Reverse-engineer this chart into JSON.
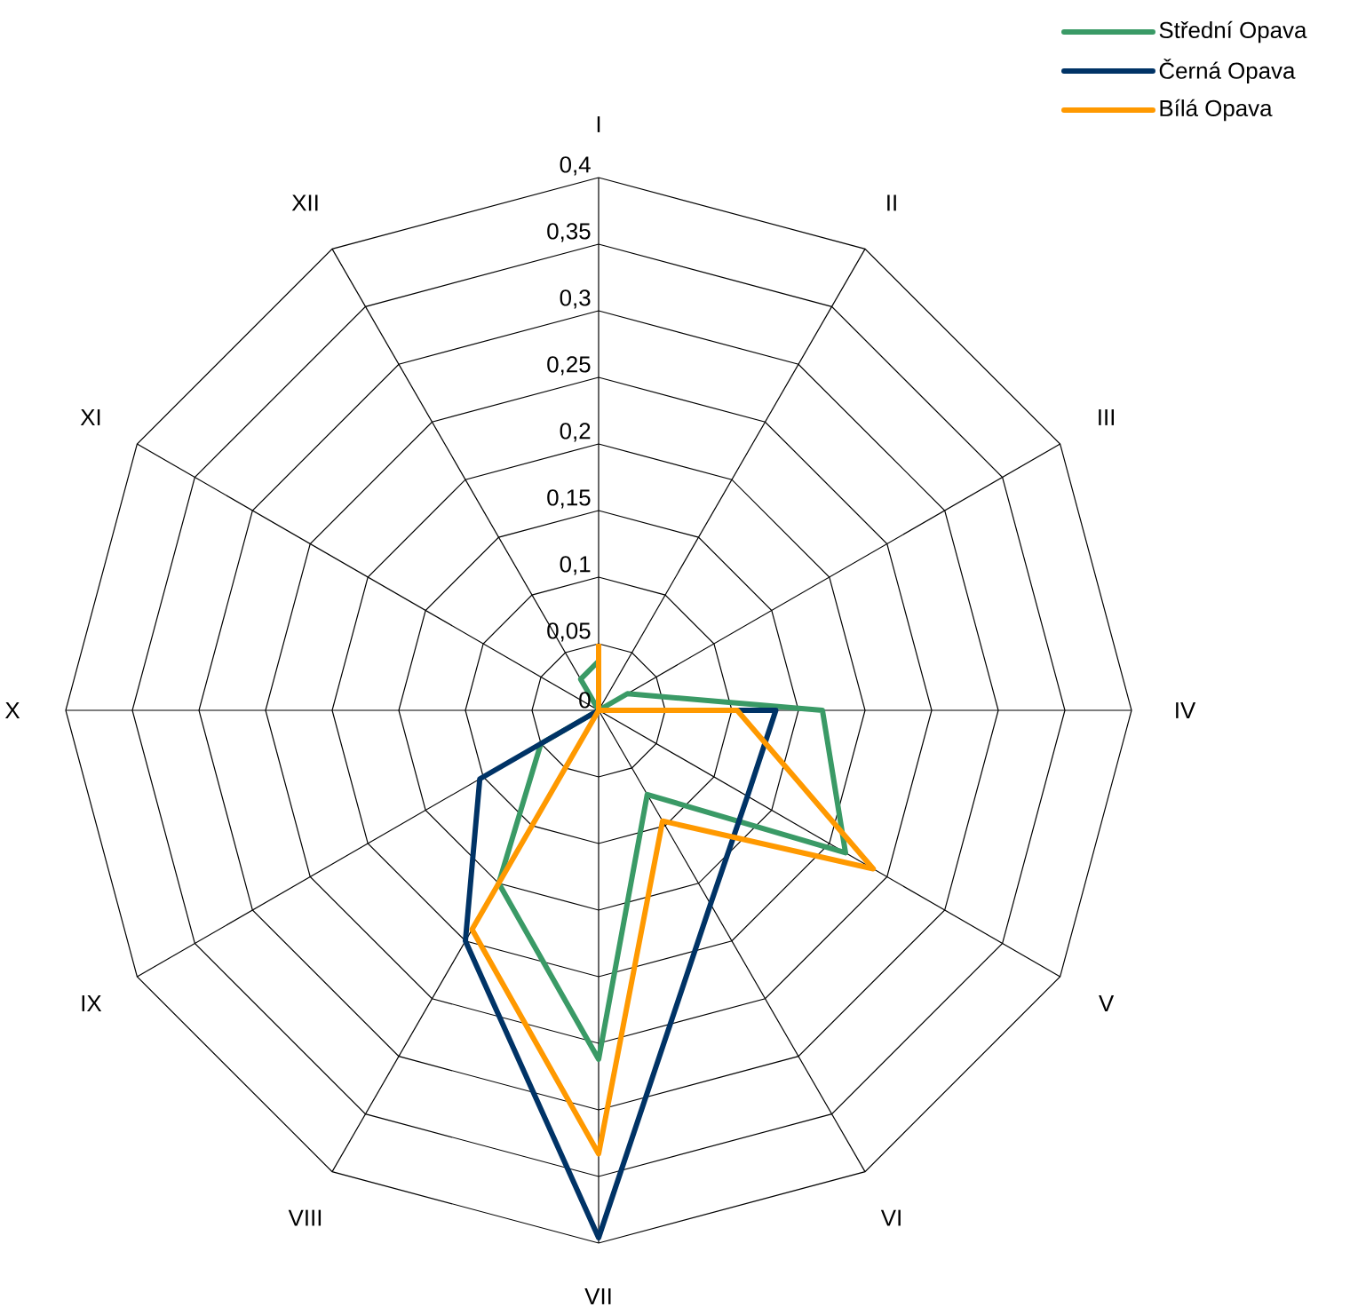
{
  "chart_data": {
    "type": "radar",
    "categories": [
      "I",
      "II",
      "III",
      "IV",
      "V",
      "VI",
      "VII",
      "VIII",
      "IX",
      "X",
      "XI",
      "XII"
    ],
    "series": [
      {
        "name": "Střední Opava",
        "color": "#3a9a66",
        "values": [
          0.037,
          0,
          0.025,
          0.168,
          0.214,
          0.073,
          0.262,
          0.15,
          0.05,
          0,
          0,
          0.027
        ]
      },
      {
        "name": "Černá Opava",
        "color": "#003366",
        "values": [
          0,
          0,
          0,
          0.133,
          0.129,
          0.168,
          0.396,
          0.2,
          0.103,
          0,
          0,
          0
        ]
      },
      {
        "name": "Bílá Opava",
        "color": "#ff9900",
        "values": [
          0.05,
          0,
          0,
          0.104,
          0.238,
          0.096,
          0.333,
          0.19,
          0,
          0,
          0,
          0
        ]
      }
    ],
    "ylim": [
      0,
      0.4
    ],
    "yticks": [
      0,
      {
        "value": 0.05,
        "label": "0,05"
      },
      {
        "value": 0.1,
        "label": "0,1"
      },
      {
        "value": 0.15,
        "label": "0,15"
      },
      {
        "value": 0.2,
        "label": "0,2"
      },
      {
        "value": 0.25,
        "label": "0,25"
      },
      {
        "value": 0.3,
        "label": "0,3"
      },
      {
        "value": 0.35,
        "label": "0,35"
      },
      {
        "value": 0.4,
        "label": "0,4"
      }
    ],
    "grid": true,
    "legend": "top right",
    "marker": "none",
    "line_style": "solid"
  }
}
